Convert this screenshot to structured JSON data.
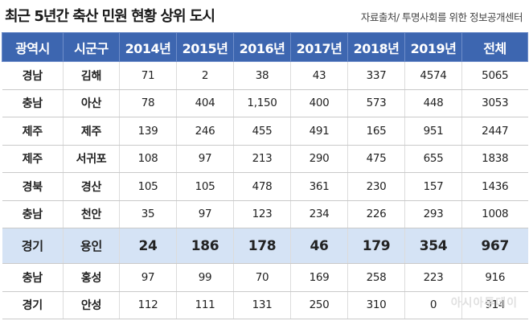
{
  "title": "최근 5년간 축산 민원 현황 상위 도시",
  "source": "자료출처/ 투명사회를 위한 정보공개센터",
  "watermark": "아시아투데이",
  "columns": [
    "광역시",
    "시군구",
    "2014년",
    "2015년",
    "2016년",
    "2017년",
    "2018년",
    "2019년",
    "전체"
  ],
  "rows": [
    {
      "region": "경남",
      "city": "김해",
      "values": [
        "71",
        "2",
        "38",
        "43",
        "337",
        "4574",
        "5065"
      ]
    },
    {
      "region": "충남",
      "city": "아산",
      "values": [
        "78",
        "404",
        "1,150",
        "400",
        "573",
        "448",
        "3053"
      ]
    },
    {
      "region": "제주",
      "city": "제주",
      "values": [
        "139",
        "246",
        "455",
        "491",
        "165",
        "951",
        "2447"
      ]
    },
    {
      "region": "제주",
      "city": "서귀포",
      "values": [
        "108",
        "97",
        "213",
        "290",
        "475",
        "655",
        "1838"
      ]
    },
    {
      "region": "경북",
      "city": "경산",
      "values": [
        "105",
        "105",
        "478",
        "361",
        "230",
        "157",
        "1436"
      ]
    },
    {
      "region": "충남",
      "city": "천안",
      "values": [
        "35",
        "97",
        "123",
        "234",
        "226",
        "293",
        "1008"
      ]
    },
    {
      "region": "경기",
      "city": "용인",
      "highlight": true,
      "values": [
        "24",
        "186",
        "178",
        "46",
        "179",
        "354",
        "967"
      ]
    },
    {
      "region": "충남",
      "city": "홍성",
      "values": [
        "97",
        "99",
        "70",
        "169",
        "258",
        "223",
        "916"
      ]
    },
    {
      "region": "경기",
      "city": "안성",
      "values": [
        "112",
        "111",
        "131",
        "250",
        "310",
        "0",
        "914"
      ]
    }
  ],
  "colors": {
    "header_bg": "#3d66b0",
    "highlight_bg": "#d5e3f5"
  }
}
